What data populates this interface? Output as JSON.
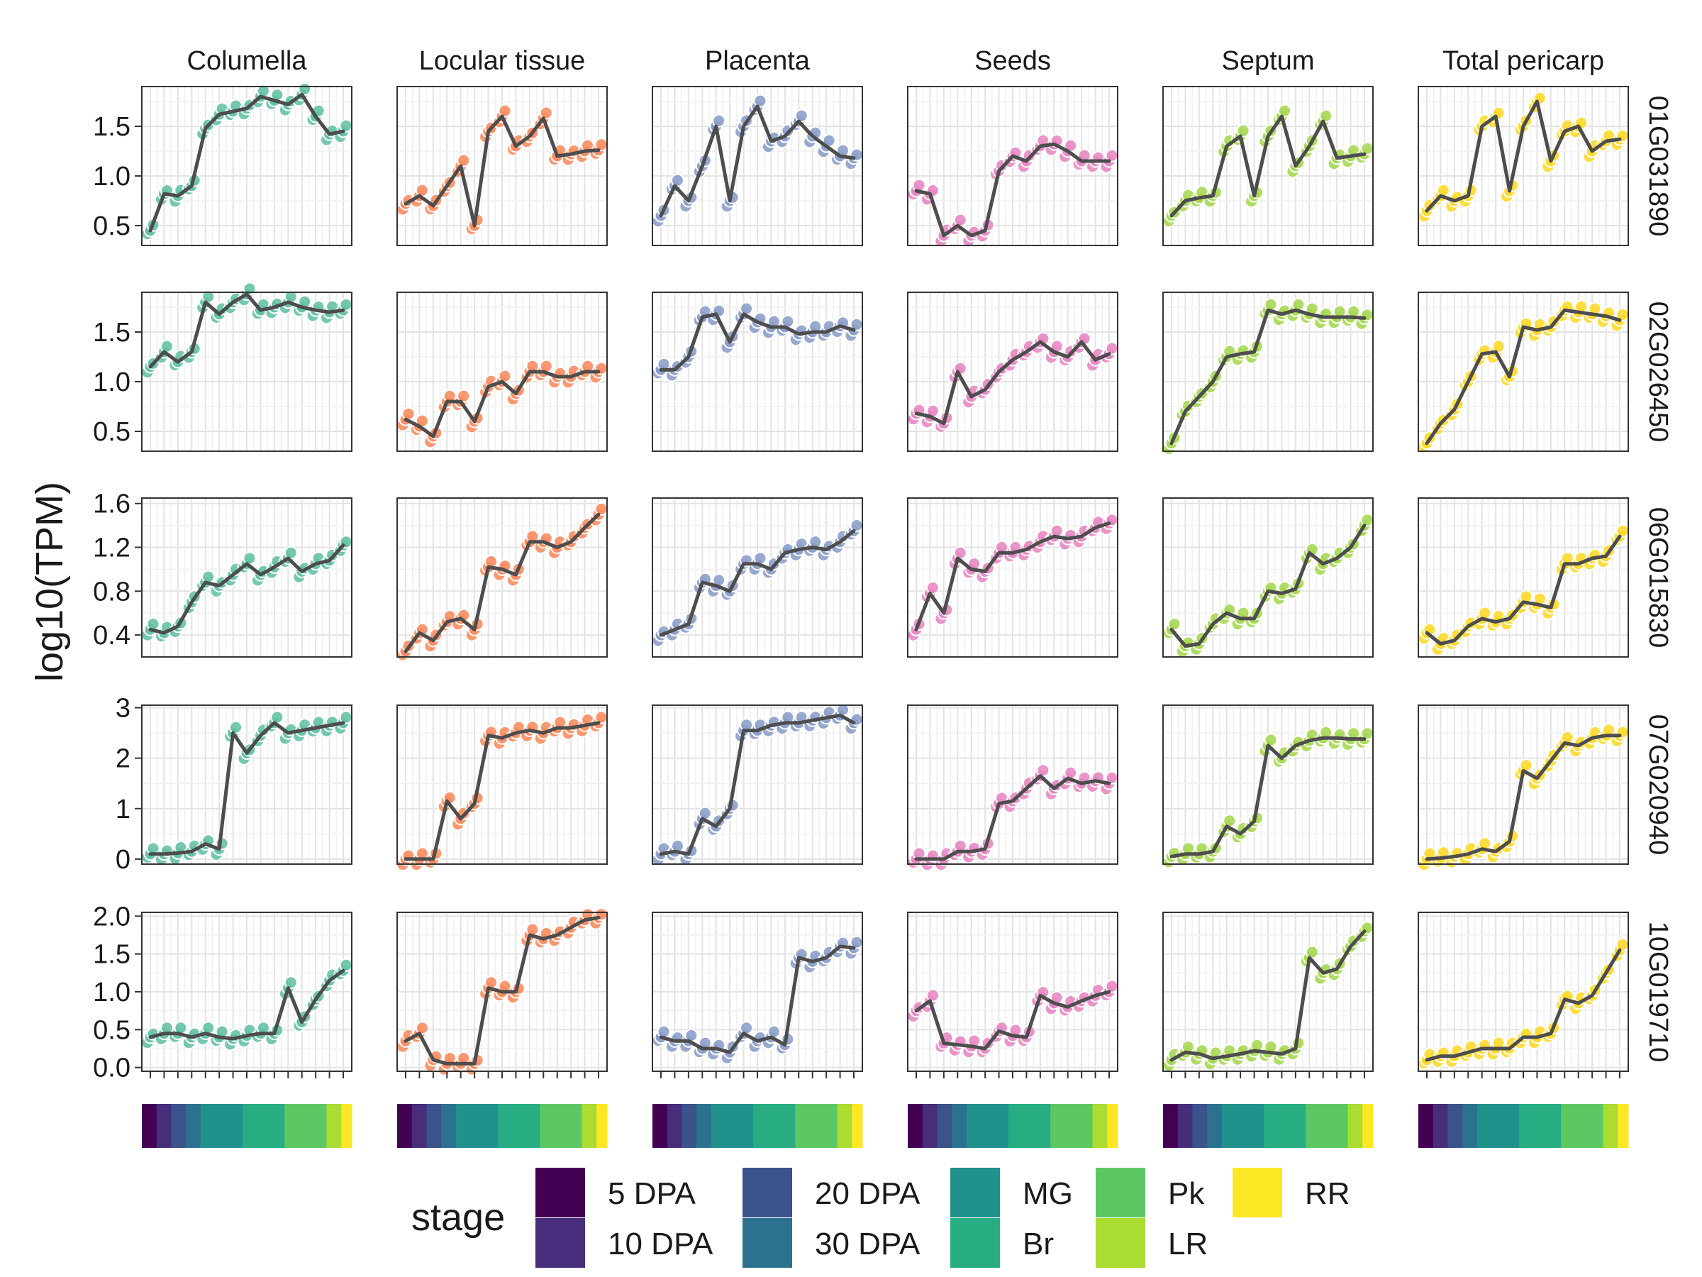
{
  "chart_data": {
    "type": "line",
    "ylabel": "log10(TPM)",
    "xlabel": "",
    "columns": [
      "Columella",
      "Locular tissue",
      "Placenta",
      "Seeds",
      "Septum",
      "Total pericarp"
    ],
    "column_colors": [
      "#66c2a5",
      "#fc8d62",
      "#8da0cb",
      "#e78ac3",
      "#a6d854",
      "#ffd92f"
    ],
    "line_color": "#4d4d4d",
    "grid": true,
    "legend_position": "bottom",
    "legend_title": "stage",
    "stages": [
      {
        "label": "5 DPA",
        "color": "#440154"
      },
      {
        "label": "10 DPA",
        "color": "#472d7b"
      },
      {
        "label": "20 DPA",
        "color": "#3b528b"
      },
      {
        "label": "30 DPA",
        "color": "#2c728e"
      },
      {
        "label": "MG",
        "color": "#21918c"
      },
      {
        "label": "Br",
        "color": "#27ad81"
      },
      {
        "label": "Pk",
        "color": "#5dc863"
      },
      {
        "label": "LR",
        "color": "#aadc32"
      },
      {
        "label": "RR",
        "color": "#fde725"
      }
    ],
    "stage_bar_fractions": [
      0.07,
      0.07,
      0.07,
      0.07,
      0.2,
      0.2,
      0.2,
      0.07,
      0.05
    ],
    "n_timepoints": 15,
    "rows": [
      {
        "gene": "01G031890",
        "ylim": [
          0.3,
          1.9
        ],
        "yticks": [
          "0.5",
          "1.0",
          "1.5"
        ],
        "series": [
          [
            0.45,
            0.82,
            0.8,
            0.9,
            1.48,
            1.62,
            1.65,
            1.68,
            1.8,
            1.76,
            1.72,
            1.82,
            1.6,
            1.42,
            1.45
          ],
          [
            0.72,
            0.8,
            0.7,
            0.9,
            1.1,
            0.5,
            1.45,
            1.6,
            1.3,
            1.4,
            1.58,
            1.2,
            1.22,
            1.25,
            1.26
          ],
          [
            0.6,
            0.9,
            0.75,
            1.1,
            1.5,
            0.75,
            1.5,
            1.7,
            1.35,
            1.4,
            1.55,
            1.4,
            1.3,
            1.2,
            1.18
          ],
          [
            0.85,
            0.82,
            0.4,
            0.5,
            0.4,
            0.45,
            1.05,
            1.2,
            1.15,
            1.3,
            1.32,
            1.25,
            1.15,
            1.15,
            1.15
          ],
          [
            0.6,
            0.75,
            0.78,
            0.8,
            1.3,
            1.4,
            0.8,
            1.4,
            1.6,
            1.1,
            1.3,
            1.55,
            1.18,
            1.2,
            1.22
          ],
          [
            0.65,
            0.8,
            0.75,
            0.8,
            1.5,
            1.6,
            0.85,
            1.5,
            1.75,
            1.15,
            1.45,
            1.5,
            1.25,
            1.35,
            1.37
          ]
        ]
      },
      {
        "gene": "02G026450",
        "ylim": [
          0.3,
          1.9
        ],
        "yticks": [
          "0.5",
          "1.0",
          "1.5"
        ],
        "series": [
          [
            1.15,
            1.3,
            1.2,
            1.3,
            1.8,
            1.68,
            1.8,
            1.88,
            1.72,
            1.75,
            1.8,
            1.75,
            1.72,
            1.7,
            1.72
          ],
          [
            0.62,
            0.55,
            0.45,
            0.8,
            0.8,
            0.6,
            0.95,
            1.0,
            0.88,
            1.1,
            1.1,
            1.05,
            1.05,
            1.1,
            1.1
          ],
          [
            1.12,
            1.12,
            1.25,
            1.65,
            1.68,
            1.4,
            1.68,
            1.6,
            1.55,
            1.55,
            1.48,
            1.5,
            1.5,
            1.56,
            1.52
          ],
          [
            0.68,
            0.65,
            0.58,
            1.1,
            0.85,
            0.92,
            1.1,
            1.22,
            1.3,
            1.4,
            1.3,
            1.25,
            1.4,
            1.22,
            1.28
          ],
          [
            0.38,
            0.7,
            0.85,
            1.0,
            1.25,
            1.28,
            1.3,
            1.72,
            1.68,
            1.72,
            1.68,
            1.65,
            1.65,
            1.65,
            1.64
          ],
          [
            0.38,
            0.58,
            0.72,
            1.0,
            1.28,
            1.3,
            1.05,
            1.55,
            1.52,
            1.55,
            1.72,
            1.7,
            1.68,
            1.66,
            1.62
          ]
        ]
      },
      {
        "gene": "06G015830",
        "ylim": [
          0.2,
          1.65
        ],
        "yticks": [
          "0.4",
          "0.8",
          "1.2",
          "1.6"
        ],
        "series": [
          [
            0.45,
            0.42,
            0.48,
            0.7,
            0.88,
            0.85,
            0.95,
            1.05,
            0.95,
            1.02,
            1.1,
            0.98,
            1.05,
            1.08,
            1.22
          ],
          [
            0.25,
            0.42,
            0.35,
            0.52,
            0.55,
            0.45,
            1.02,
            1.0,
            0.95,
            1.25,
            1.25,
            1.2,
            1.25,
            1.38,
            1.5
          ],
          [
            0.4,
            0.45,
            0.5,
            0.88,
            0.85,
            0.8,
            1.05,
            1.05,
            1.0,
            1.15,
            1.18,
            1.2,
            1.18,
            1.25,
            1.35
          ],
          [
            0.45,
            0.78,
            0.6,
            1.1,
            1.0,
            0.98,
            1.15,
            1.15,
            1.18,
            1.25,
            1.3,
            1.28,
            1.3,
            1.38,
            1.42
          ],
          [
            0.45,
            0.3,
            0.32,
            0.5,
            0.6,
            0.55,
            0.55,
            0.8,
            0.78,
            0.82,
            1.15,
            1.05,
            1.1,
            1.2,
            1.4
          ],
          [
            0.42,
            0.32,
            0.35,
            0.48,
            0.55,
            0.52,
            0.55,
            0.7,
            0.68,
            0.65,
            1.05,
            1.05,
            1.1,
            1.12,
            1.3
          ]
        ]
      },
      {
        "gene": "07G020940",
        "ylim": [
          -0.1,
          3.05
        ],
        "yticks": [
          "0",
          "1",
          "2",
          "3"
        ],
        "series": [
          [
            0.1,
            0.1,
            0.12,
            0.15,
            0.3,
            0.2,
            2.5,
            2.1,
            2.45,
            2.7,
            2.5,
            2.55,
            2.6,
            2.65,
            2.7
          ],
          [
            0.0,
            0.0,
            0.0,
            1.15,
            0.8,
            1.1,
            2.45,
            2.4,
            2.5,
            2.55,
            2.5,
            2.6,
            2.6,
            2.65,
            2.7
          ],
          [
            0.1,
            0.15,
            0.1,
            0.8,
            0.65,
            1.0,
            2.55,
            2.55,
            2.65,
            2.7,
            2.7,
            2.75,
            2.8,
            2.85,
            2.7
          ],
          [
            0.0,
            0.0,
            0.0,
            0.15,
            0.15,
            0.2,
            1.1,
            1.15,
            1.4,
            1.65,
            1.4,
            1.6,
            1.5,
            1.55,
            1.5
          ],
          [
            0.05,
            0.1,
            0.1,
            0.15,
            0.65,
            0.5,
            0.75,
            2.25,
            2.0,
            2.25,
            2.35,
            2.4,
            2.4,
            2.38,
            2.38
          ],
          [
            0.0,
            0.02,
            0.05,
            0.1,
            0.2,
            0.15,
            0.35,
            1.75,
            1.6,
            1.95,
            2.3,
            2.25,
            2.4,
            2.45,
            2.45
          ]
        ]
      },
      {
        "gene": "10G019710",
        "ylim": [
          -0.05,
          2.05
        ],
        "yticks": [
          "0.0",
          "0.5",
          "1.0",
          "1.5",
          "2.0"
        ],
        "series": [
          [
            0.4,
            0.45,
            0.45,
            0.4,
            0.45,
            0.4,
            0.38,
            0.42,
            0.45,
            0.45,
            1.05,
            0.6,
            0.9,
            1.15,
            1.28
          ],
          [
            0.35,
            0.45,
            0.1,
            0.05,
            0.05,
            0.05,
            1.05,
            1.0,
            1.0,
            1.75,
            1.7,
            1.75,
            1.85,
            1.95,
            1.98
          ],
          [
            0.4,
            0.35,
            0.35,
            0.25,
            0.25,
            0.2,
            0.45,
            0.35,
            0.4,
            0.3,
            1.45,
            1.4,
            1.45,
            1.6,
            1.58
          ],
          [
            0.75,
            0.88,
            0.32,
            0.3,
            0.28,
            0.25,
            0.48,
            0.42,
            0.4,
            0.95,
            0.85,
            0.8,
            0.88,
            0.95,
            1.0
          ],
          [
            0.1,
            0.2,
            0.18,
            0.12,
            0.15,
            0.18,
            0.22,
            0.2,
            0.18,
            0.25,
            1.45,
            1.25,
            1.3,
            1.6,
            1.8
          ],
          [
            0.1,
            0.15,
            0.15,
            0.2,
            0.25,
            0.25,
            0.25,
            0.4,
            0.4,
            0.45,
            0.9,
            0.85,
            0.95,
            1.25,
            1.55
          ]
        ]
      }
    ]
  }
}
